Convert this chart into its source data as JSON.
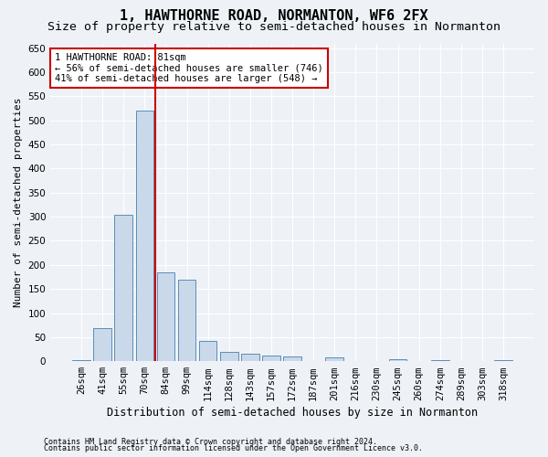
{
  "title": "1, HAWTHORNE ROAD, NORMANTON, WF6 2FX",
  "subtitle": "Size of property relative to semi-detached houses in Normanton",
  "xlabel": "Distribution of semi-detached houses by size in Normanton",
  "ylabel": "Number of semi-detached properties",
  "categories": [
    "26sqm",
    "41sqm",
    "55sqm",
    "70sqm",
    "84sqm",
    "99sqm",
    "114sqm",
    "128sqm",
    "143sqm",
    "157sqm",
    "172sqm",
    "187sqm",
    "201sqm",
    "216sqm",
    "230sqm",
    "245sqm",
    "260sqm",
    "274sqm",
    "289sqm",
    "303sqm",
    "318sqm"
  ],
  "values": [
    2,
    68,
    305,
    520,
    185,
    170,
    42,
    20,
    15,
    12,
    10,
    0,
    8,
    0,
    0,
    5,
    0,
    2,
    0,
    0,
    2
  ],
  "bar_color": "#c9d9ea",
  "bar_edge_color": "#5b8db8",
  "vline_color": "#cc0000",
  "vline_x_index": 3.5,
  "annotation_text": "1 HAWTHORNE ROAD: 81sqm\n← 56% of semi-detached houses are smaller (746)\n41% of semi-detached houses are larger (548) →",
  "annotation_box_facecolor": "#ffffff",
  "annotation_box_edgecolor": "#cc0000",
  "ylim": [
    0,
    660
  ],
  "yticks": [
    0,
    50,
    100,
    150,
    200,
    250,
    300,
    350,
    400,
    450,
    500,
    550,
    600,
    650
  ],
  "footnote1": "Contains HM Land Registry data © Crown copyright and database right 2024.",
  "footnote2": "Contains public sector information licensed under the Open Government Licence v3.0.",
  "bg_color": "#eef2f7",
  "plot_bg_color": "#eef2f7",
  "grid_color": "#ffffff",
  "title_fontsize": 11,
  "subtitle_fontsize": 9.5,
  "ylabel_fontsize": 8,
  "xlabel_fontsize": 8.5,
  "tick_fontsize": 7.5,
  "annot_fontsize": 7.5,
  "footnote_fontsize": 6
}
